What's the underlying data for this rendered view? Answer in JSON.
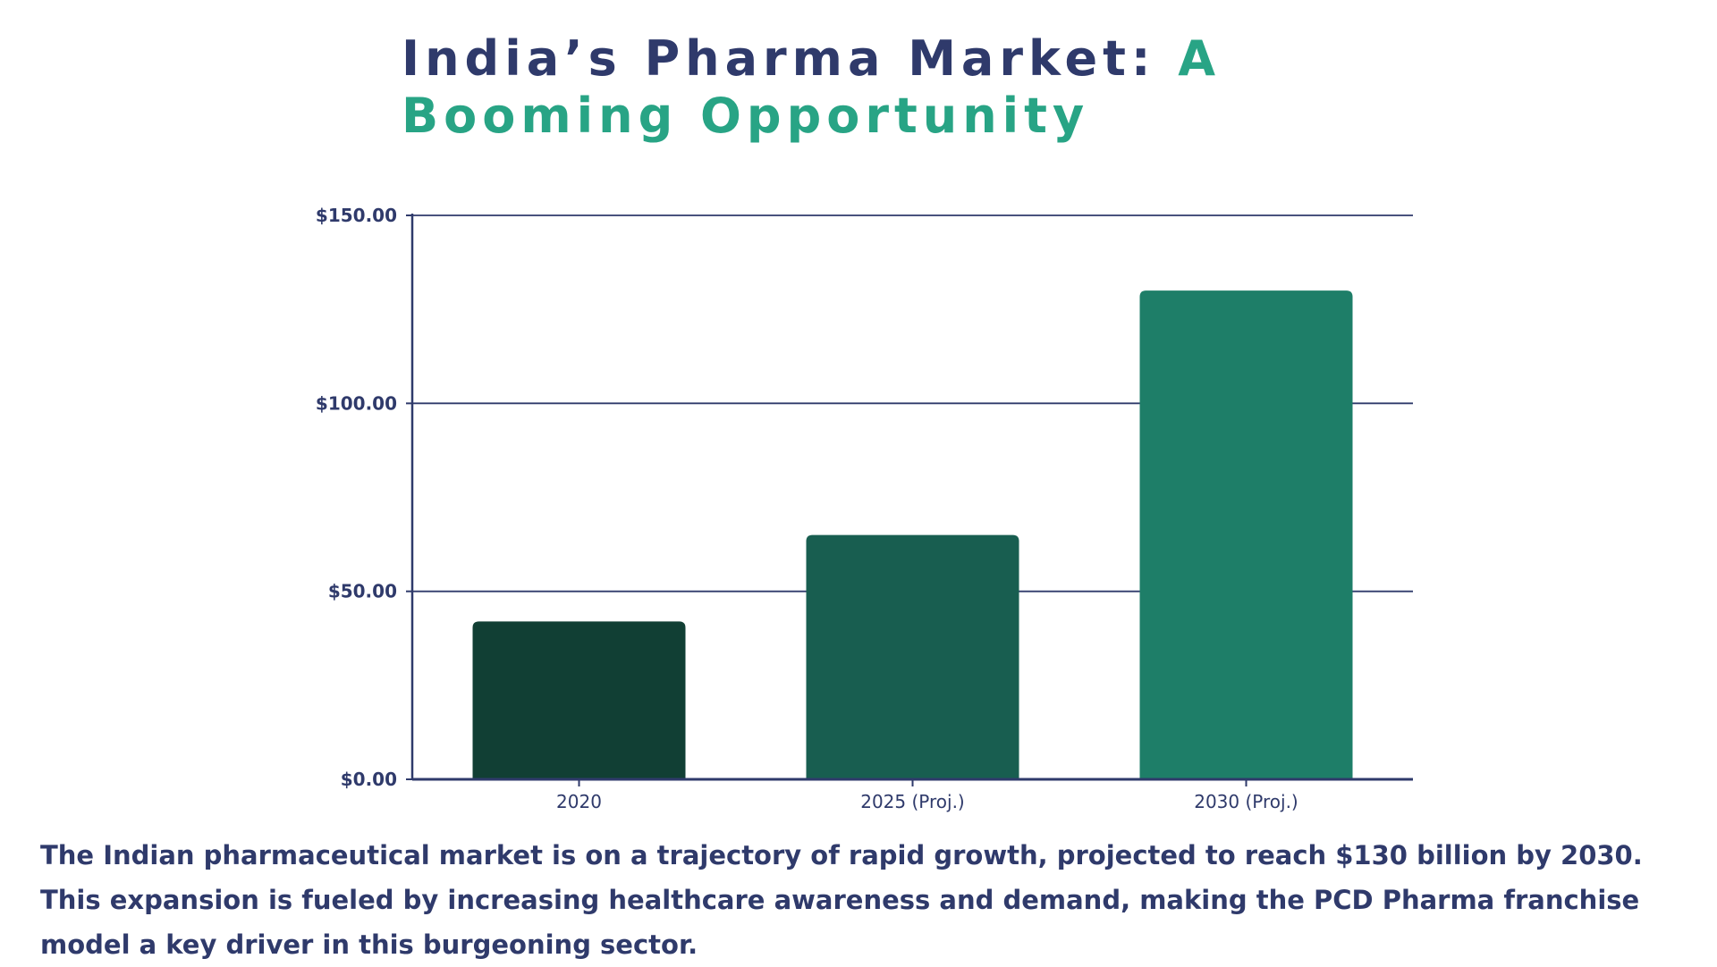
{
  "title": {
    "part1": "India’s Pharma Market: ",
    "part2": "A Booming Opportunity"
  },
  "colors": {
    "title_dark": "#2f3a6b",
    "title_accent": "#28a485",
    "axis": "#2f3a6b"
  },
  "chart_data": {
    "type": "bar",
    "categories": [
      "2020",
      "2025 (Proj.)",
      "2030 (Proj.)"
    ],
    "values": [
      42,
      65,
      130
    ],
    "bar_colors": [
      "#113f34",
      "#185e50",
      "#1e7e68"
    ],
    "ylim": [
      0,
      150
    ],
    "yticks": [
      0,
      50,
      100,
      150
    ],
    "ytick_labels": [
      "$0.00",
      "$50.00",
      "$100.00",
      "$150.00"
    ],
    "grid": true,
    "xlabel": "",
    "ylabel": ""
  },
  "caption": "The Indian pharmaceutical market is on a trajectory of rapid growth, projected to reach $130 billion by 2030. This expansion is fueled by increasing healthcare awareness and demand, making the PCD Pharma franchise model a key driver in this burgeoning sector."
}
